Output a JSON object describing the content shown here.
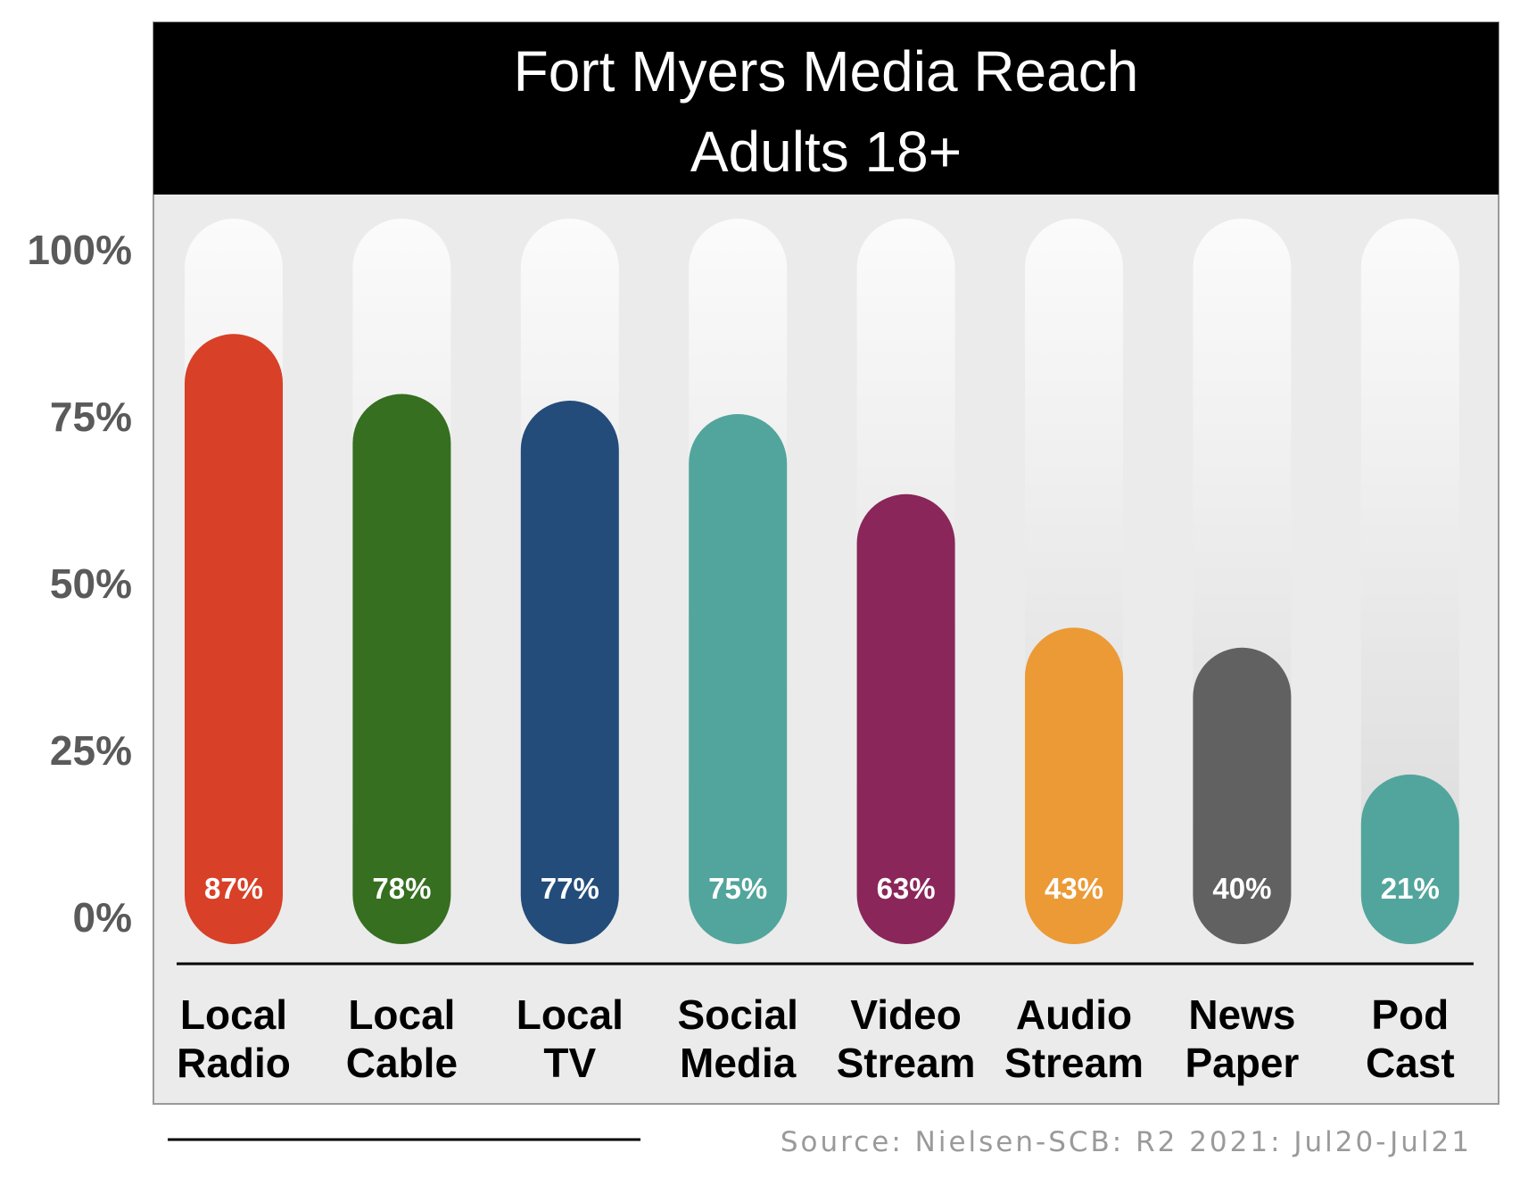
{
  "chart_data": {
    "type": "bar",
    "title": "Fort Myers Media Reach",
    "subtitle": "Adults 18+",
    "categories": [
      [
        "Local",
        "Radio"
      ],
      [
        "Local",
        "Cable"
      ],
      [
        "Local",
        "TV"
      ],
      [
        "Social",
        "Media"
      ],
      [
        "Video",
        "Stream"
      ],
      [
        "Audio",
        "Stream"
      ],
      [
        "News",
        "Paper"
      ],
      [
        "Pod",
        "Cast"
      ]
    ],
    "values": [
      87,
      78,
      77,
      75,
      63,
      43,
      40,
      21
    ],
    "value_labels": [
      "87%",
      "78%",
      "77%",
      "75%",
      "63%",
      "43%",
      "40%",
      "21%"
    ],
    "colors": [
      "#d84027",
      "#356f1f",
      "#234c7a",
      "#52a59c",
      "#8a2659",
      "#ec9a36",
      "#616161",
      "#52a59c"
    ],
    "ylim": [
      0,
      100
    ],
    "yticks": [
      0,
      25,
      50,
      75,
      100
    ],
    "ytick_labels": [
      "0%",
      "25%",
      "50%",
      "75%",
      "100%"
    ],
    "grid": false,
    "legend": "none",
    "source": "Source: Nielsen-SCB: R2 2021: Jul20-Jul21"
  }
}
